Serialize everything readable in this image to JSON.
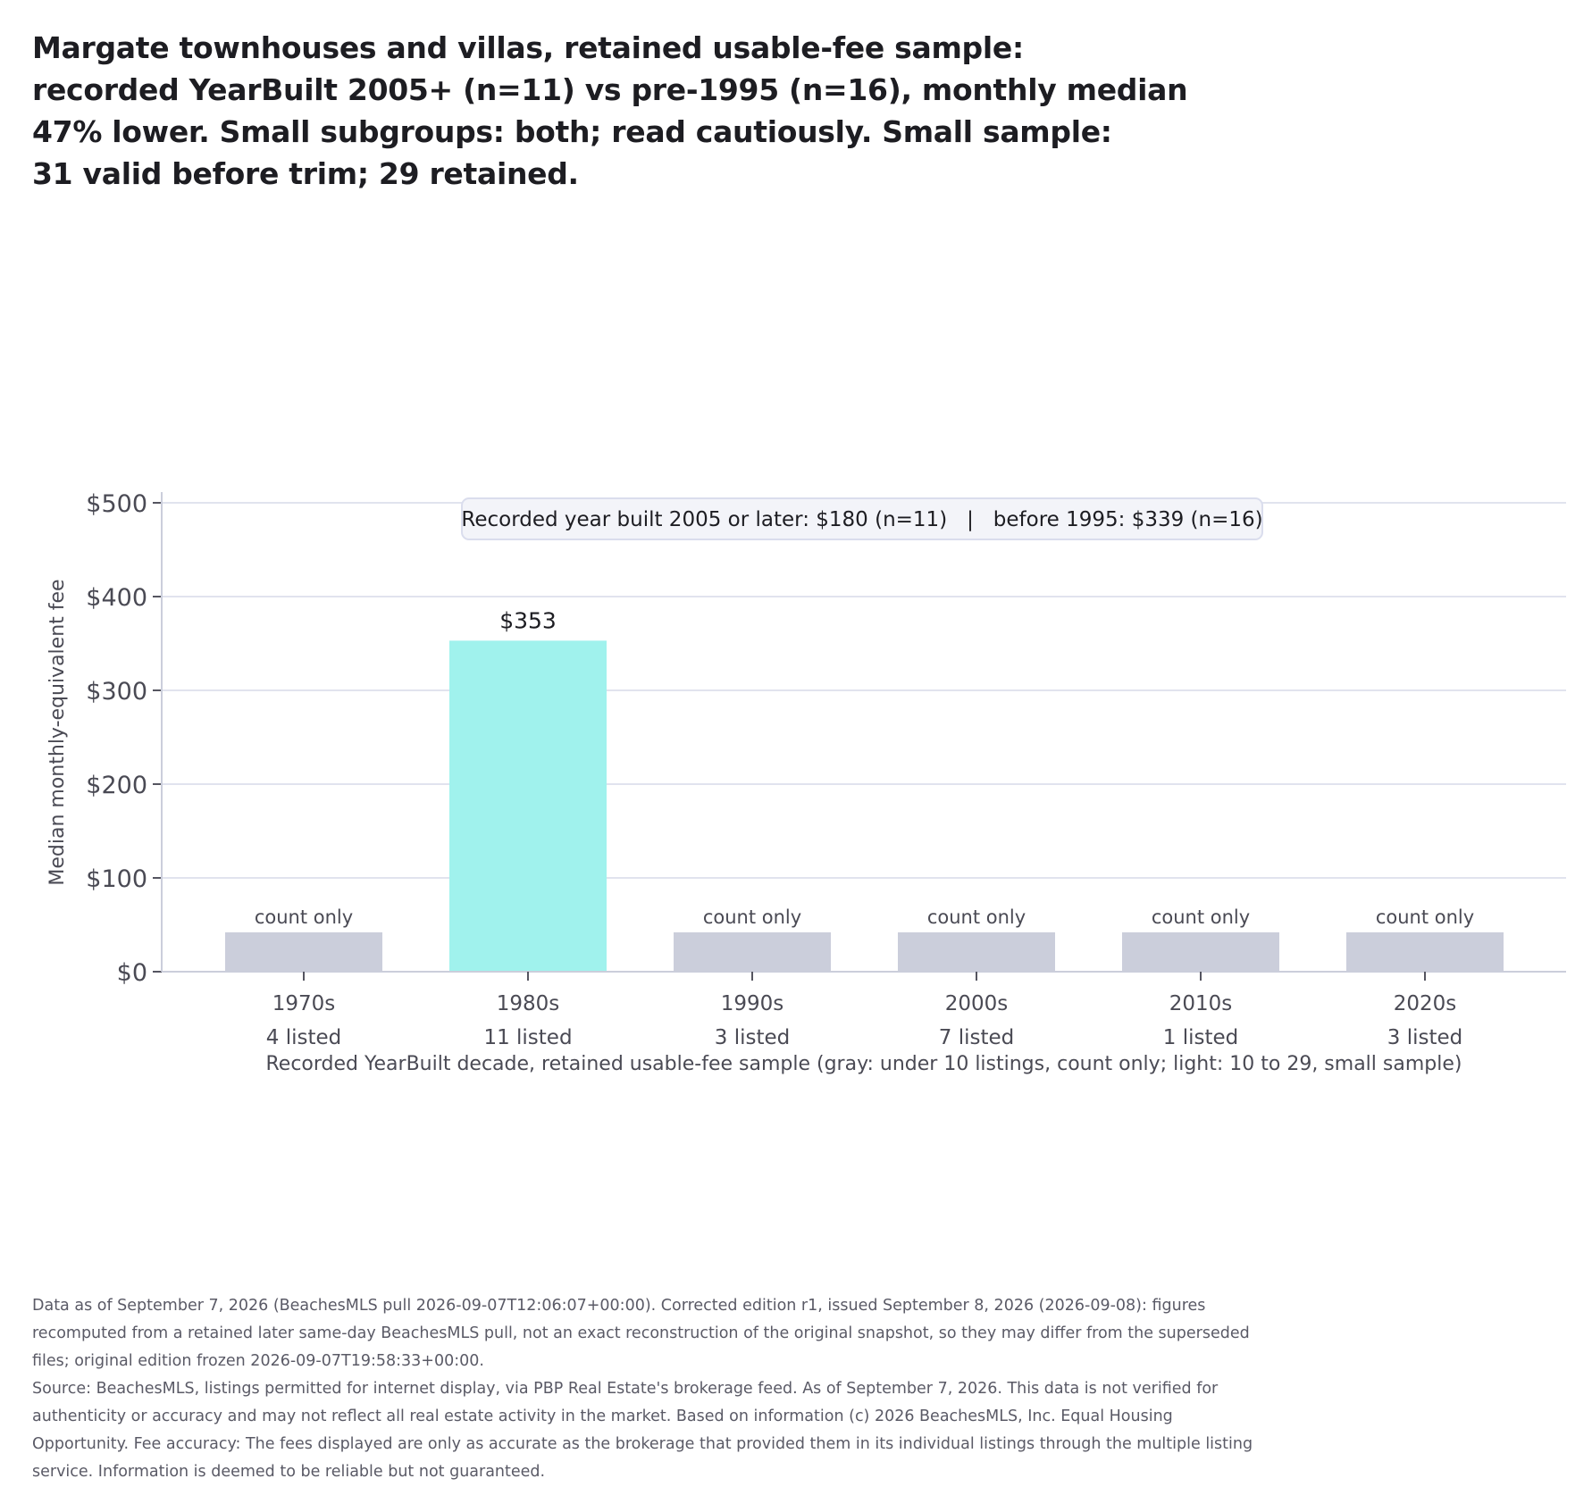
{
  "title_lines": [
    "Margate townhouses and villas, retained usable-fee sample:",
    "recorded YearBuilt 2005+ (n=11) vs pre-1995 (n=16), monthly median",
    "47% lower. Small subgroups: both; read cautiously. Small sample:",
    "31 valid before trim; 29 retained."
  ],
  "chart_data": {
    "type": "bar",
    "categories": [
      "1970s",
      "1980s",
      "1990s",
      "2000s",
      "2010s",
      "2020s"
    ],
    "category_counts": [
      "4 listed",
      "11 listed",
      "3 listed",
      "7 listed",
      "1 listed",
      "3 listed"
    ],
    "values": [
      null,
      353,
      null,
      null,
      null,
      null
    ],
    "bar_labels": [
      "count only",
      "$353",
      "count only",
      "count only",
      "count only",
      "count only"
    ],
    "count_only_bar_value": 42,
    "ylabel": "Median monthly-equivalent fee",
    "xlabel": "Recorded YearBuilt decade, retained usable-fee sample (gray: under 10 listings, count only; light: 10 to 29, small sample)",
    "ylim": [
      0,
      500
    ],
    "yticks": [
      0,
      100,
      200,
      300,
      400,
      500
    ],
    "ytick_labels": [
      "$0",
      "$100",
      "$200",
      "$300",
      "$400",
      "$500"
    ],
    "grid": true,
    "annotation": "Recorded year built 2005 or later: $180 (n=11)   |   before 1995: $339 (n=16)",
    "colors": {
      "count_only": "#cbcedb",
      "small_sample": "#a0f2ed",
      "grid": "#e1e3ee",
      "axis": "#cbcedb"
    }
  },
  "notes": [
    "Data as of September 7, 2026 (BeachesMLS pull 2026-09-07T12:06:07+00:00). Corrected edition r1, issued September 8, 2026 (2026-09-08): figures recomputed from a retained later same-day BeachesMLS pull, not an exact reconstruction of the original snapshot, so they may differ from the superseded files; original edition frozen 2026-09-07T19:58:33+00:00.",
    "Source: BeachesMLS, listings permitted for internet display, via PBP Real Estate's brokerage feed. As of September 7, 2026. This data is not verified for authenticity or accuracy and may not reflect all real estate activity in the market. Based on information (c) 2026 BeachesMLS, Inc. Equal Housing Opportunity. Fee accuracy: The fees displayed are only as accurate as the brokerage that provided them in its individual listings through the multiple listing service. Information is deemed to be reliable but not guaranteed."
  ]
}
